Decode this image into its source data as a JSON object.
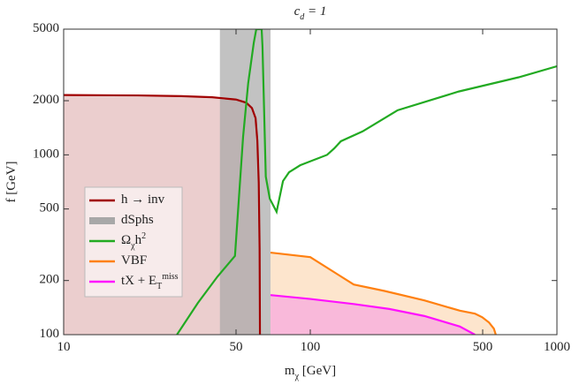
{
  "chart_data": {
    "type": "line",
    "title": "c_{d} = 1",
    "x_label": "m_{χ}  [GeV]",
    "y_label": "f  [GeV]",
    "xscale": "log",
    "yscale": "log",
    "xlim": [
      10,
      1000
    ],
    "ylim": [
      100,
      5000
    ],
    "xticks": [
      10,
      50,
      100,
      500,
      1000
    ],
    "yticks": [
      100,
      200,
      500,
      1000,
      2000,
      5000
    ],
    "legend": "left",
    "series": [
      {
        "name": "h → inv",
        "color": "#a00000",
        "fill": "#e8c6c6",
        "x": [
          10,
          20,
          30,
          40,
          50,
          55,
          58,
          60,
          61,
          61.8,
          62.3,
          62.5
        ],
        "values": [
          2150,
          2140,
          2120,
          2090,
          2030,
          1950,
          1820,
          1600,
          1200,
          700,
          300,
          100
        ]
      },
      {
        "name": "dSphs",
        "color": "#a8a8a8",
        "xrange": [
          43,
          69
        ]
      },
      {
        "name": "Ω_{χ}h^{2}",
        "color": "#22aa22",
        "x": [
          28.8,
          35,
          42,
          49.5,
          53.4,
          56,
          59,
          60.4,
          62,
          63.5,
          64,
          66,
          68.5,
          73,
          77.5,
          82,
          91,
          117,
          125,
          133,
          163,
          226,
          400,
          700,
          1000
        ],
        "values": [
          100,
          150,
          210,
          274,
          1260,
          2500,
          4200,
          5000,
          5000,
          5000,
          4000,
          757,
          570,
          482,
          715,
          800,
          875,
          1000,
          1085,
          1190,
          1350,
          1770,
          2250,
          2700,
          3110
        ]
      },
      {
        "name": "VBF",
        "color": "#ff8010",
        "fill": "#fde0c4",
        "x": [
          69,
          100,
          150,
          200,
          290,
          404,
          465,
          498,
          530,
          555,
          565
        ],
        "values": [
          286,
          270,
          190,
          175,
          155,
          136,
          131,
          125,
          117,
          108,
          100
        ]
      },
      {
        "name": "tX + E_{T}^{miss}",
        "color": "#ff10ff",
        "fill": "#f8b2dc",
        "x": [
          69,
          100,
          150,
          209,
          290,
          404,
          465
        ],
        "values": [
          166,
          158,
          148,
          139,
          127,
          111,
          100
        ]
      }
    ]
  }
}
